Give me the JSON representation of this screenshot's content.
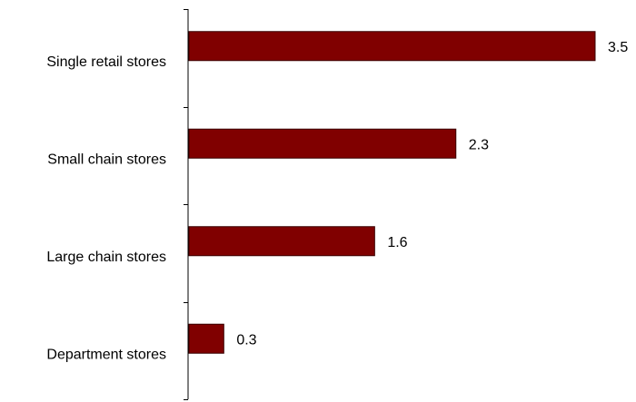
{
  "chart_data": {
    "type": "bar",
    "orientation": "horizontal",
    "categories": [
      "Single retail stores",
      "Small chain stores",
      "Large chain stores",
      "Department stores"
    ],
    "values": [
      3.5,
      2.3,
      1.6,
      0.3
    ],
    "data_labels": [
      "3.5",
      "2.3",
      "1.6",
      "0.3"
    ],
    "title": "",
    "xlabel": "",
    "ylabel": "",
    "xlim": [
      0,
      3.5
    ],
    "grid": false,
    "legend": "none",
    "colors": {
      "bar_fill": "#800000",
      "bar_stroke": "#3a0000",
      "axis": "#000000"
    }
  }
}
